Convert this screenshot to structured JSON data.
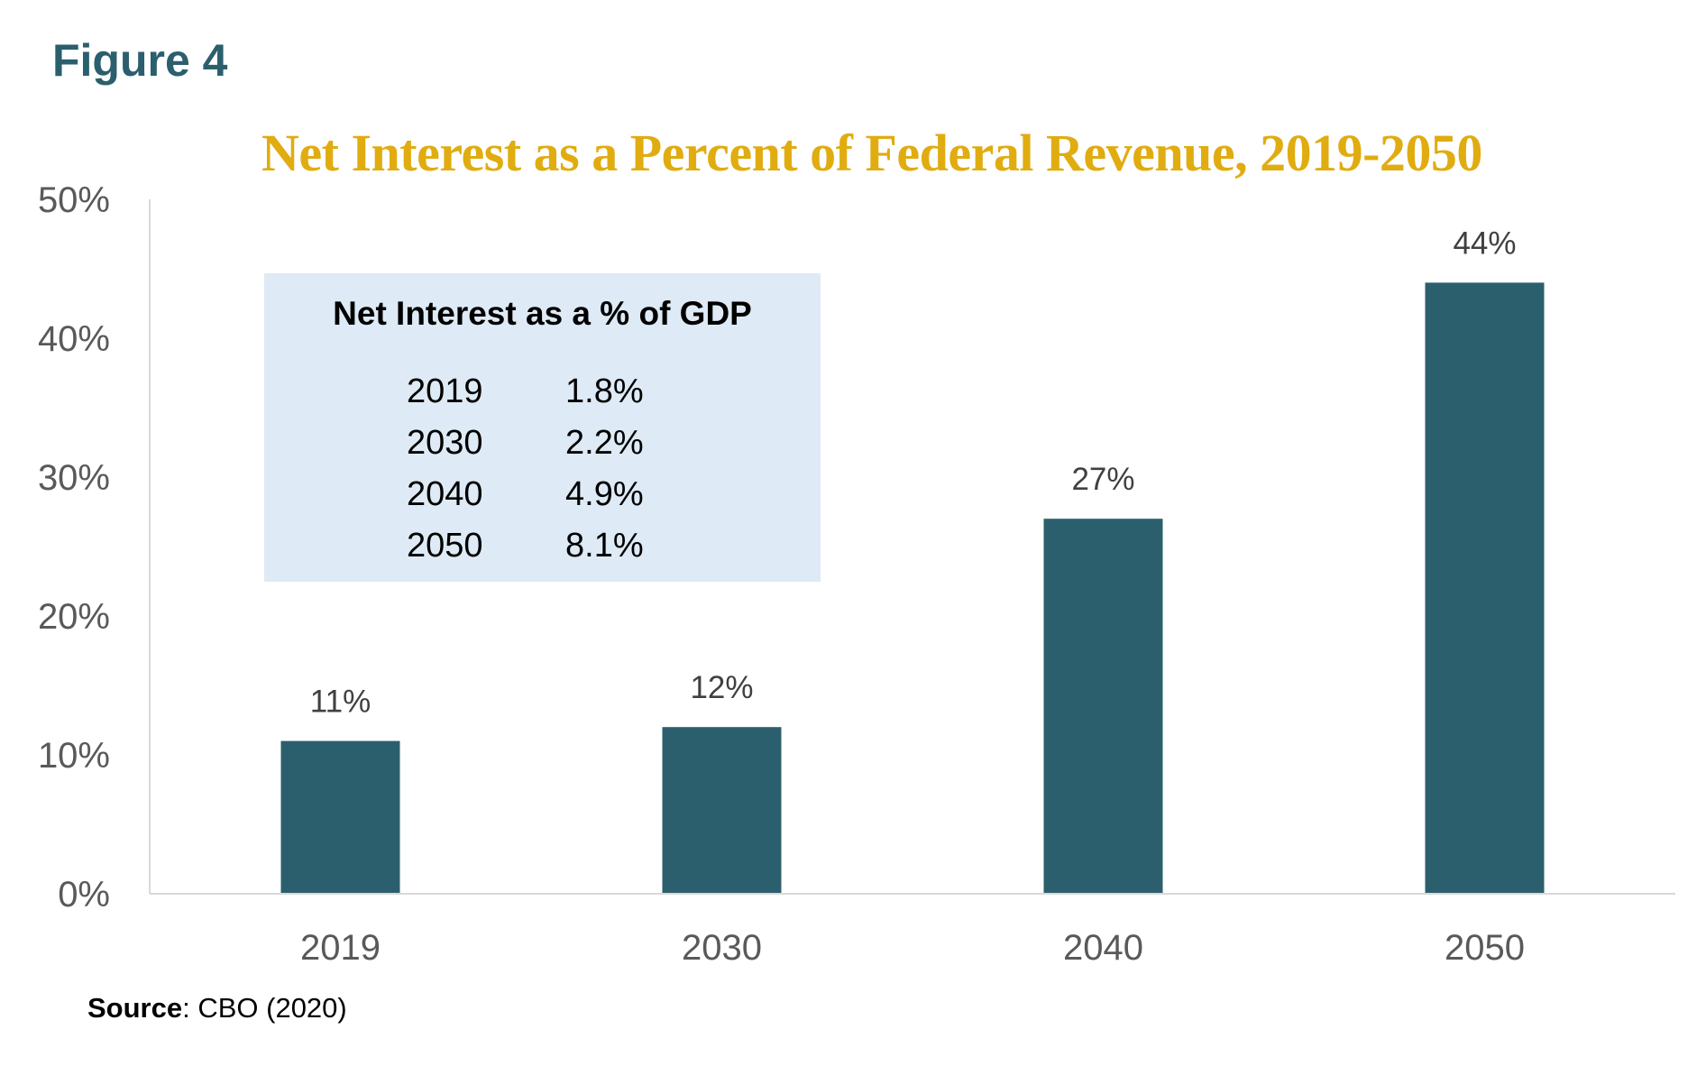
{
  "figure_label": "Figure 4",
  "source": {
    "label": "Source",
    "text": ": CBO (2020)"
  },
  "inset_table": {
    "title": "Net Interest as a % of GDP",
    "rows": [
      {
        "year": "2019",
        "value": "1.8%"
      },
      {
        "year": "2030",
        "value": "2.2%"
      },
      {
        "year": "2040",
        "value": "4.9%"
      },
      {
        "year": "2050",
        "value": "8.1%"
      }
    ]
  },
  "colors": {
    "bar": "#2b5f6e",
    "title": "#e0ac10",
    "figure_label": "#2b5f6e",
    "inset_background": "#deeaf5",
    "axis": "#d9d9d9"
  },
  "chart_data": {
    "type": "bar",
    "title": "Net Interest as a Percent of Federal Revenue, 2019-2050",
    "xlabel": "",
    "ylabel": "",
    "categories": [
      "2019",
      "2030",
      "2040",
      "2050"
    ],
    "values": [
      11,
      12,
      27,
      44
    ],
    "value_labels": [
      "11%",
      "12%",
      "27%",
      "44%"
    ],
    "ylim": [
      0,
      50
    ],
    "y_ticks": [
      0,
      10,
      20,
      30,
      40,
      50
    ],
    "y_tick_labels": [
      "0%",
      "10%",
      "20%",
      "30%",
      "40%",
      "50%"
    ],
    "grid": false,
    "legend": "none"
  }
}
